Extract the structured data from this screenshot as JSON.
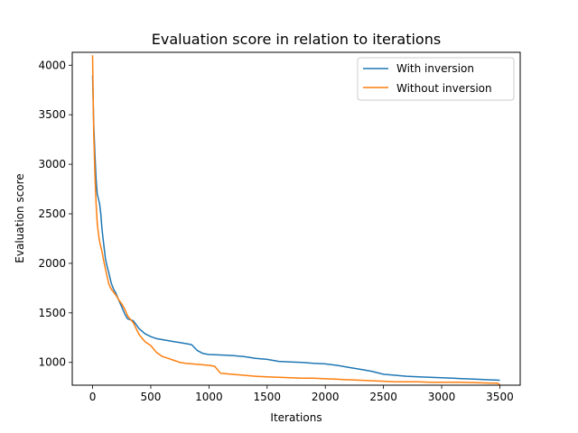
{
  "chart_data": {
    "type": "line",
    "title": "Evaluation score in relation to iterations",
    "xlabel": "Iterations",
    "ylabel": "Evaluation score",
    "xlim": [
      -175,
      3675
    ],
    "ylim": [
      770,
      4130
    ],
    "xticks": [
      0,
      500,
      1000,
      1500,
      2000,
      2500,
      3000,
      3500
    ],
    "yticks": [
      1000,
      1500,
      2000,
      2500,
      3000,
      3500,
      4000
    ],
    "grid": false,
    "legend_position": "top-right",
    "series": [
      {
        "name": "With inversion",
        "color": "#1f77b4",
        "x": [
          0,
          10,
          20,
          30,
          40,
          50,
          60,
          70,
          80,
          90,
          100,
          110,
          120,
          140,
          160,
          180,
          200,
          220,
          250,
          280,
          300,
          350,
          400,
          450,
          500,
          550,
          600,
          650,
          700,
          750,
          800,
          850,
          900,
          950,
          1000,
          1100,
          1200,
          1300,
          1400,
          1500,
          1600,
          1700,
          1800,
          1900,
          2000,
          2100,
          2200,
          2300,
          2400,
          2500,
          2600,
          2700,
          2800,
          2900,
          3000,
          3100,
          3200,
          3300,
          3400,
          3500
        ],
        "y": [
          3900,
          3400,
          3100,
          2850,
          2700,
          2650,
          2600,
          2500,
          2350,
          2250,
          2150,
          2050,
          1990,
          1900,
          1800,
          1740,
          1700,
          1640,
          1560,
          1480,
          1440,
          1420,
          1340,
          1290,
          1260,
          1240,
          1230,
          1220,
          1210,
          1200,
          1190,
          1180,
          1120,
          1090,
          1080,
          1075,
          1070,
          1060,
          1040,
          1030,
          1010,
          1005,
          1000,
          990,
          985,
          970,
          950,
          930,
          910,
          880,
          870,
          860,
          855,
          850,
          845,
          840,
          835,
          830,
          825,
          820
        ]
      },
      {
        "name": "Without inversion",
        "color": "#ff7f0e",
        "x": [
          0,
          10,
          20,
          30,
          40,
          50,
          60,
          70,
          80,
          90,
          100,
          120,
          140,
          160,
          180,
          200,
          220,
          250,
          280,
          300,
          350,
          400,
          450,
          500,
          550,
          600,
          650,
          700,
          750,
          800,
          900,
          1000,
          1050,
          1100,
          1200,
          1300,
          1400,
          1500,
          1600,
          1700,
          1800,
          1900,
          2000,
          2100,
          2200,
          2300,
          2400,
          2500,
          2600,
          2700,
          2800,
          2900,
          3000,
          3100,
          3200,
          3300,
          3400,
          3480,
          3500
        ],
        "y": [
          4100,
          3300,
          2900,
          2600,
          2400,
          2300,
          2220,
          2170,
          2120,
          2060,
          2000,
          1890,
          1790,
          1740,
          1710,
          1680,
          1640,
          1590,
          1530,
          1470,
          1400,
          1280,
          1210,
          1170,
          1100,
          1060,
          1040,
          1020,
          1000,
          990,
          980,
          970,
          960,
          890,
          880,
          870,
          860,
          855,
          850,
          845,
          840,
          840,
          835,
          830,
          825,
          820,
          815,
          810,
          805,
          805,
          805,
          800,
          800,
          800,
          798,
          795,
          792,
          790,
          775
        ]
      }
    ]
  }
}
